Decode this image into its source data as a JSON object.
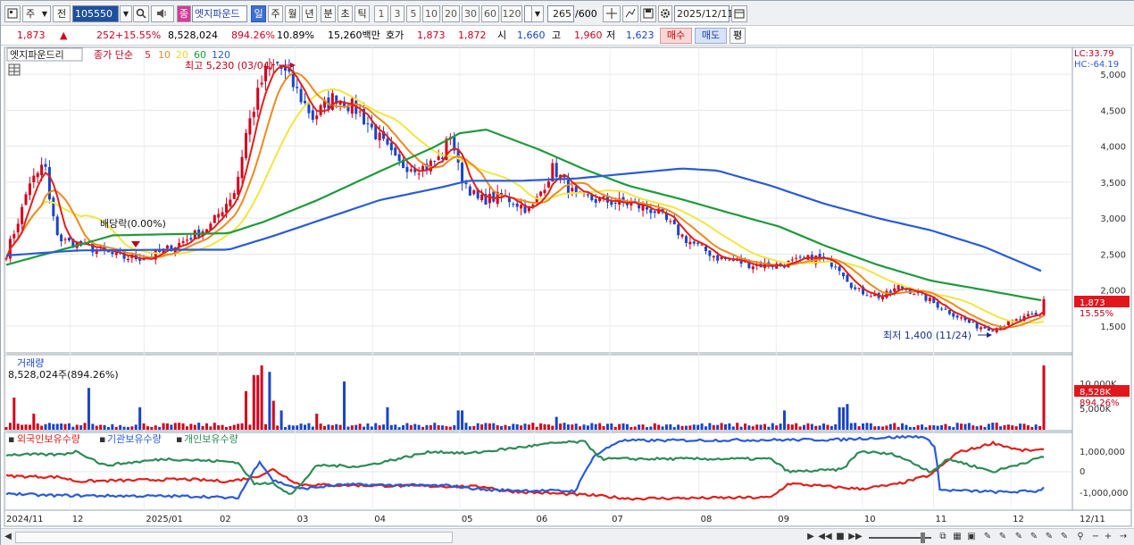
{
  "toolbar": {
    "type_label": "주",
    "prev_label": "전",
    "code_value": "105550",
    "stock_badge": "종",
    "stock_name": "엣지파운드",
    "periods": [
      "일",
      "주",
      "월",
      "년",
      "분",
      "초",
      "틱"
    ],
    "minutes": [
      "1",
      "3",
      "5",
      "10",
      "20",
      "30",
      "60",
      "120"
    ],
    "count_value": "265",
    "count_total": "/600",
    "date_value": "2025/12/11"
  },
  "quote": {
    "price": "1,873",
    "price_arrow": "▲",
    "change": "252",
    "change_pct": "+15.55%",
    "volume": "8,528,024",
    "volume_pct": "894.26%",
    "turnover_pct": "10.89%",
    "amount": "15,260백만",
    "bid_label": "호가",
    "bid": "1,873",
    "ask": "1,872",
    "open_label": "시",
    "open": "1,660",
    "high_label": "고",
    "high": "1,960",
    "low_label": "저",
    "low": "1,623",
    "buy_label": "매수",
    "sell_label": "매도",
    "flat_label": "평"
  },
  "colors": {
    "up": "#d4001c",
    "down": "#1a44c8",
    "ma5": "#e0201c",
    "ma10": "#ee8a1f",
    "ma20": "#f2e640",
    "ma60": "#1f9a3c",
    "ma120": "#2a5bd7",
    "foreign": "#e0201c",
    "institution": "#2a5bd7",
    "individual": "#2e8b57"
  },
  "icons": [
    "chart-type-icon",
    "dropdown-icon",
    "search-icon",
    "speaker-icon",
    "crosshair-icon",
    "line-tool-icon",
    "save-icon",
    "gear-icon",
    "calendar-icon"
  ],
  "chart_data": [
    {
      "type": "candlestick",
      "title": "엣지파운드리",
      "legend": {
        "label": "종가 단순",
        "items": [
          {
            "name": "5",
            "color": "#e0201c"
          },
          {
            "name": "10",
            "color": "#ee8a1f"
          },
          {
            "name": "20",
            "color": "#f2e640"
          },
          {
            "name": "60",
            "color": "#1f9a3c"
          },
          {
            "name": "120",
            "color": "#2a5bd7"
          }
        ]
      },
      "info_right": [
        "LC:33.79",
        "HC:-64.19"
      ],
      "y_ticks": [
        1500,
        2000,
        2500,
        3000,
        3500,
        4000,
        4500,
        5000
      ],
      "y_range": [
        1150,
        5300
      ],
      "annotations": {
        "high": "최고 5,230 (03/04)",
        "low": "최저 1,400 (11/24)",
        "dividend": "배당락(0.00%)"
      },
      "last_price_label": "1,873",
      "last_change_label": "15.55%",
      "close_keypoints": [
        [
          0,
          2500
        ],
        [
          20,
          3200
        ],
        [
          25,
          3500
        ],
        [
          38,
          3600
        ],
        [
          42,
          3900
        ],
        [
          50,
          3100
        ],
        [
          60,
          2700
        ],
        [
          90,
          2600
        ],
        [
          130,
          2450
        ],
        [
          160,
          2450
        ],
        [
          195,
          2650
        ],
        [
          230,
          2900
        ],
        [
          258,
          3400
        ],
        [
          270,
          4200
        ],
        [
          290,
          5000
        ],
        [
          305,
          5150
        ],
        [
          320,
          4900
        ],
        [
          345,
          4400
        ],
        [
          370,
          4700
        ],
        [
          395,
          4500
        ],
        [
          420,
          4100
        ],
        [
          440,
          3750
        ],
        [
          470,
          3700
        ],
        [
          490,
          3850
        ],
        [
          500,
          4200
        ],
        [
          510,
          3600
        ],
        [
          530,
          3250
        ],
        [
          560,
          3300
        ],
        [
          590,
          3100
        ],
        [
          615,
          3700
        ],
        [
          640,
          3300
        ],
        [
          665,
          3250
        ],
        [
          700,
          3200
        ],
        [
          730,
          3100
        ],
        [
          765,
          2700
        ],
        [
          800,
          2450
        ],
        [
          840,
          2350
        ],
        [
          870,
          2350
        ],
        [
          910,
          2450
        ],
        [
          935,
          2350
        ],
        [
          955,
          2000
        ],
        [
          985,
          1900
        ],
        [
          1005,
          2050
        ],
        [
          1025,
          1950
        ],
        [
          1060,
          1700
        ],
        [
          1090,
          1500
        ],
        [
          1110,
          1460
        ],
        [
          1130,
          1550
        ],
        [
          1155,
          1650
        ],
        [
          1162,
          1620
        ],
        [
          1167,
          1873
        ]
      ],
      "ma60_keypoints": [
        [
          0,
          2350
        ],
        [
          80,
          2620
        ],
        [
          120,
          2760
        ],
        [
          200,
          2780
        ],
        [
          250,
          2790
        ],
        [
          290,
          2950
        ],
        [
          350,
          3250
        ],
        [
          420,
          3650
        ],
        [
          480,
          3980
        ],
        [
          510,
          4180
        ],
        [
          540,
          4230
        ],
        [
          600,
          3950
        ],
        [
          650,
          3680
        ],
        [
          700,
          3450
        ],
        [
          760,
          3260
        ],
        [
          820,
          3050
        ],
        [
          870,
          2880
        ],
        [
          920,
          2620
        ],
        [
          980,
          2350
        ],
        [
          1040,
          2130
        ],
        [
          1100,
          2000
        ],
        [
          1167,
          1850
        ]
      ],
      "ma120_keypoints": [
        [
          0,
          2480
        ],
        [
          80,
          2550
        ],
        [
          180,
          2560
        ],
        [
          250,
          2560
        ],
        [
          300,
          2750
        ],
        [
          360,
          3000
        ],
        [
          420,
          3250
        ],
        [
          490,
          3430
        ],
        [
          520,
          3520
        ],
        [
          580,
          3520
        ],
        [
          640,
          3550
        ],
        [
          700,
          3620
        ],
        [
          760,
          3690
        ],
        [
          800,
          3660
        ],
        [
          860,
          3450
        ],
        [
          920,
          3200
        ],
        [
          980,
          3000
        ],
        [
          1040,
          2830
        ],
        [
          1100,
          2600
        ],
        [
          1167,
          2250
        ]
      ],
      "x_labels": [
        "2024/11",
        "12",
        "2025/01",
        "02",
        "03",
        "04",
        "05",
        "06",
        "07",
        "08",
        "09",
        "10",
        "11",
        "12",
        "12/11"
      ]
    },
    {
      "type": "bar",
      "title": "거래량",
      "subtitle": "8,528,024주(894.26%)",
      "y_ticks": [
        "10,000K",
        "5,000K"
      ],
      "last_value_label": "8,528K",
      "last_pct_label": "894.26%",
      "spike_bars": [
        [
          8,
          0.5
        ],
        [
          30,
          0.25
        ],
        [
          92,
          0.65
        ],
        [
          150,
          0.35
        ],
        [
          270,
          0.6
        ],
        [
          280,
          0.85
        ],
        [
          287,
          1.0
        ],
        [
          295,
          0.9
        ],
        [
          300,
          0.45
        ],
        [
          310,
          0.3
        ],
        [
          350,
          0.25
        ],
        [
          380,
          0.75
        ],
        [
          430,
          0.35
        ],
        [
          510,
          0.3
        ],
        [
          620,
          0.2
        ],
        [
          875,
          0.3
        ],
        [
          940,
          0.35
        ],
        [
          945,
          0.4
        ],
        [
          1167,
          1.0
        ]
      ]
    },
    {
      "type": "line",
      "title": "보유수량",
      "series": [
        {
          "name": "외국인보유수량",
          "color": "#e0201c",
          "keypoints": [
            [
              0,
              -0.2
            ],
            [
              60,
              -0.25
            ],
            [
              80,
              -0.45
            ],
            [
              200,
              -0.35
            ],
            [
              250,
              -0.45
            ],
            [
              280,
              -0.25
            ],
            [
              300,
              0.1
            ],
            [
              330,
              -0.6
            ],
            [
              420,
              -0.65
            ],
            [
              540,
              -0.7
            ],
            [
              560,
              -0.9
            ],
            [
              660,
              -1.1
            ],
            [
              700,
              -1.25
            ],
            [
              860,
              -1.2
            ],
            [
              880,
              -0.55
            ],
            [
              960,
              -0.8
            ],
            [
              1000,
              -0.6
            ],
            [
              1040,
              -0.15
            ],
            [
              1070,
              0.9
            ],
            [
              1090,
              1.1
            ],
            [
              1110,
              1.35
            ],
            [
              1140,
              1.0
            ],
            [
              1167,
              1.0
            ]
          ]
        },
        {
          "name": "기관보유수량",
          "color": "#2a5bd7",
          "keypoints": [
            [
              0,
              -1.0
            ],
            [
              40,
              -1.1
            ],
            [
              220,
              -1.15
            ],
            [
              260,
              -1.25
            ],
            [
              285,
              0.5
            ],
            [
              300,
              -0.4
            ],
            [
              330,
              -0.8
            ],
            [
              380,
              -0.6
            ],
            [
              500,
              -0.65
            ],
            [
              540,
              -0.85
            ],
            [
              640,
              -0.9
            ],
            [
              660,
              0.7
            ],
            [
              690,
              1.45
            ],
            [
              940,
              1.5
            ],
            [
              960,
              1.55
            ],
            [
              1030,
              1.65
            ],
            [
              1045,
              1.2
            ],
            [
              1050,
              -0.85
            ],
            [
              1120,
              -0.95
            ],
            [
              1160,
              -0.9
            ],
            [
              1167,
              -0.75
            ]
          ]
        },
        {
          "name": "개인보유수량",
          "color": "#2e8b57",
          "keypoints": [
            [
              0,
              0.8
            ],
            [
              60,
              0.8
            ],
            [
              80,
              0.95
            ],
            [
              110,
              0.3
            ],
            [
              180,
              0.6
            ],
            [
              260,
              0.45
            ],
            [
              280,
              -0.6
            ],
            [
              300,
              -0.5
            ],
            [
              320,
              -1.1
            ],
            [
              350,
              0.3
            ],
            [
              400,
              0.25
            ],
            [
              480,
              0.95
            ],
            [
              520,
              0.85
            ],
            [
              560,
              1.05
            ],
            [
              620,
              1.35
            ],
            [
              650,
              1.4
            ],
            [
              670,
              0.6
            ],
            [
              700,
              0.6
            ],
            [
              860,
              0.6
            ],
            [
              880,
              0.0
            ],
            [
              940,
              0.1
            ],
            [
              960,
              0.95
            ],
            [
              1000,
              0.8
            ],
            [
              1040,
              0.0
            ],
            [
              1060,
              0.6
            ],
            [
              1110,
              0.0
            ],
            [
              1167,
              0.7
            ]
          ]
        }
      ],
      "y_ticks": [
        "1,000,000",
        "0",
        "-1,000,000"
      ]
    }
  ]
}
